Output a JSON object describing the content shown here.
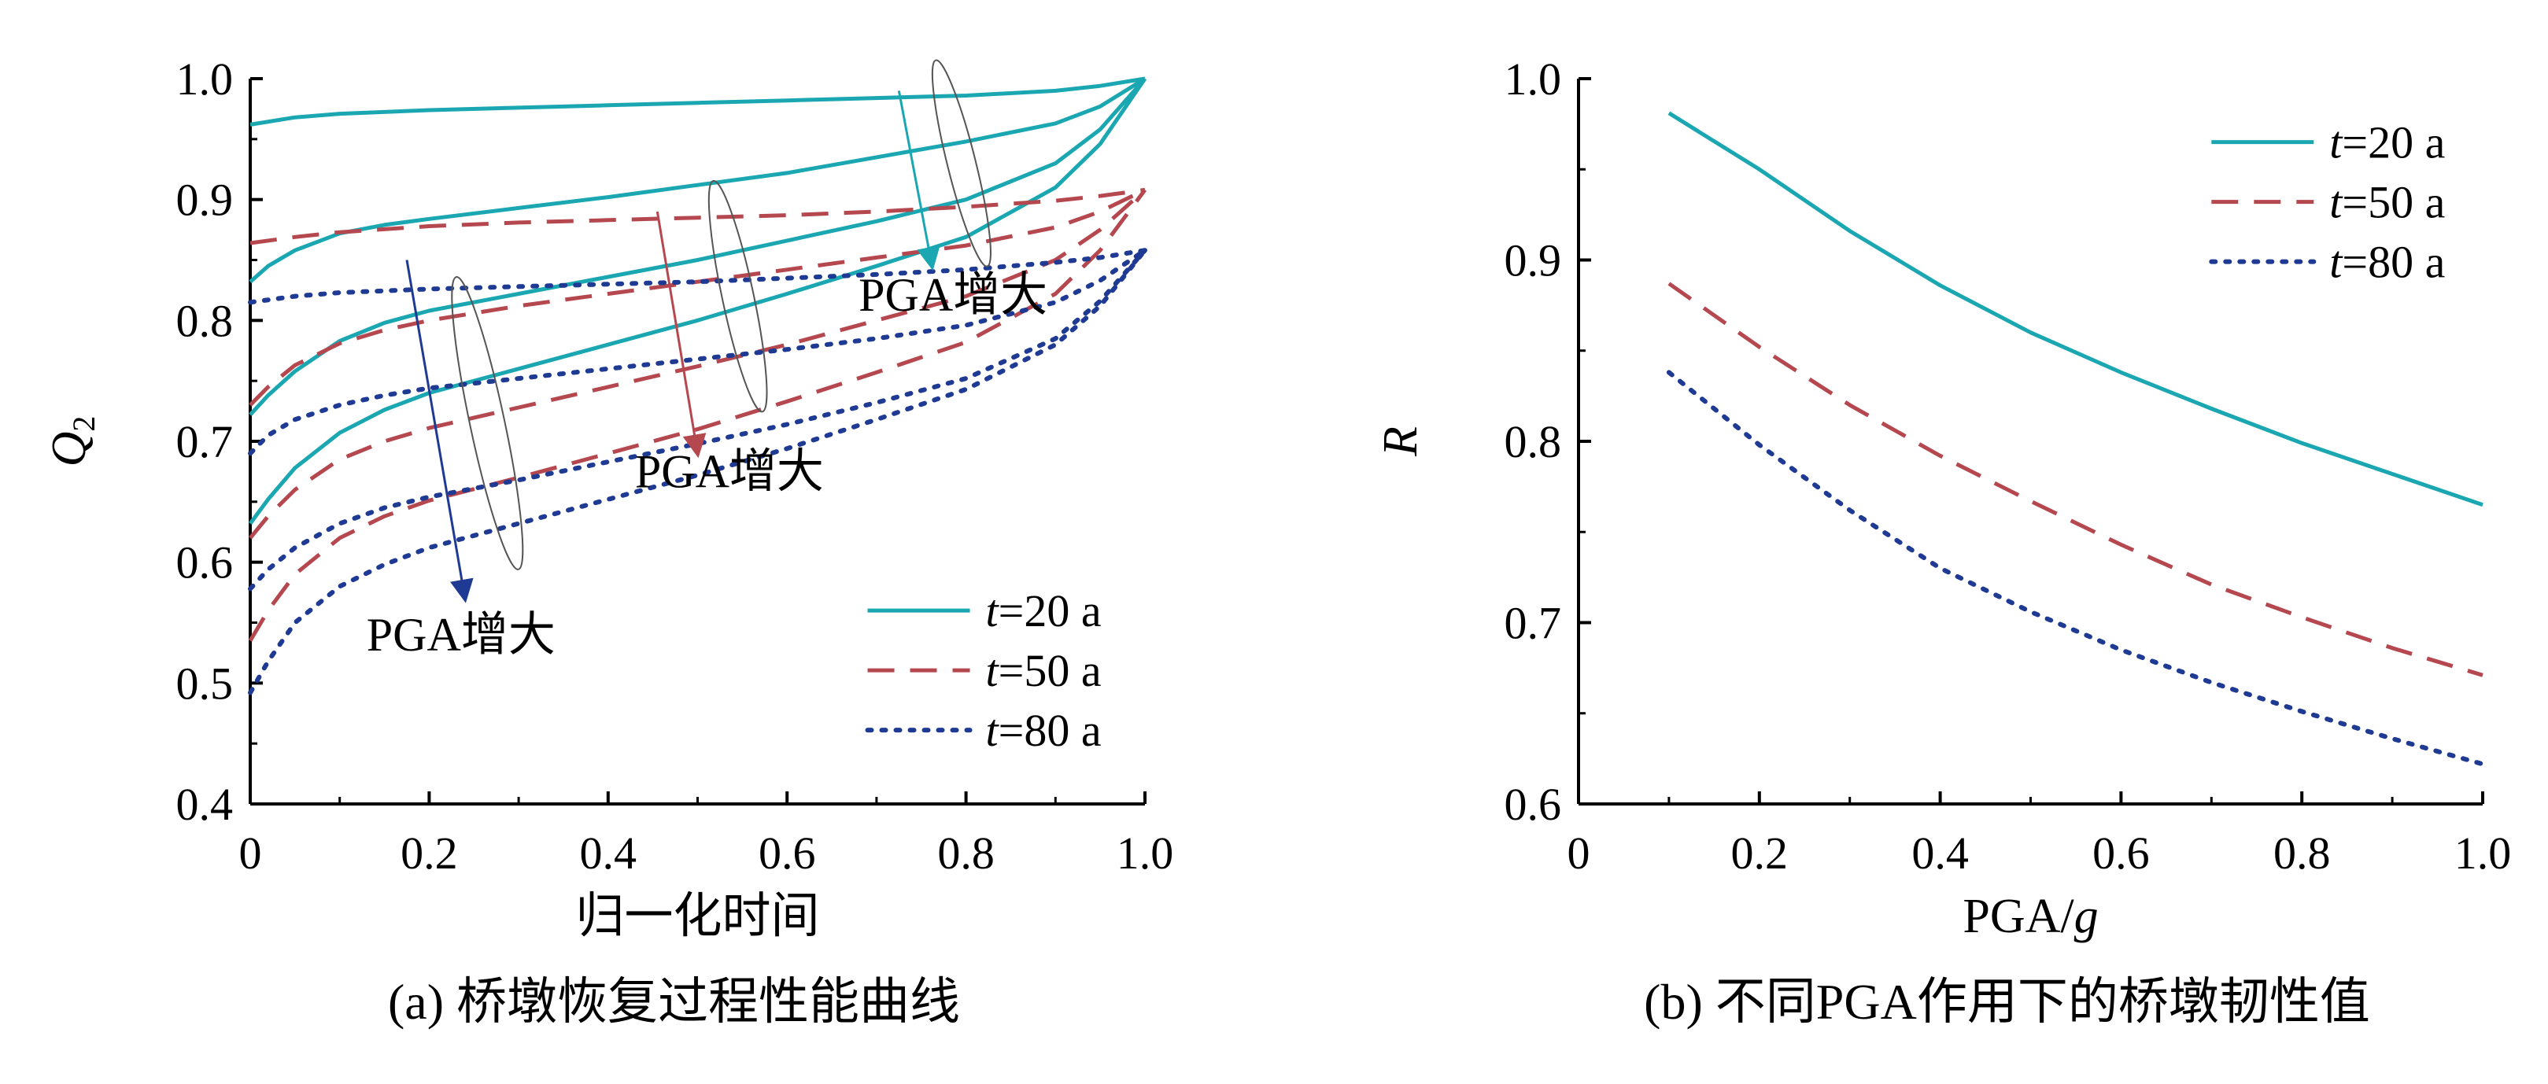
{
  "chart_data": [
    {
      "type": "line",
      "caption": "(a) 桥墩恢复过程性能曲线",
      "xlabel": "归一化时间",
      "ylabel": "Q",
      "ylabel_sub": "2",
      "xlim": [
        0,
        1.0
      ],
      "ylim": [
        0.4,
        1.0
      ],
      "xticks": [
        0,
        0.2,
        0.4,
        0.6,
        0.8,
        1.0
      ],
      "xtick_labels": [
        "0",
        "0.2",
        "0.4",
        "0.6",
        "0.8",
        "1.0"
      ],
      "yticks": [
        0.4,
        0.5,
        0.6,
        0.7,
        0.8,
        0.9,
        1.0
      ],
      "ytick_labels": [
        "0.4",
        "0.5",
        "0.6",
        "0.7",
        "0.8",
        "0.9",
        "1.0"
      ],
      "grid": false,
      "legend": {
        "position": "bottom-right",
        "entries": [
          {
            "italic": "t",
            "text": "=20 a",
            "style": "solid",
            "color": "#1AA7B2"
          },
          {
            "italic": "t",
            "text": "=50 a",
            "style": "dashed",
            "color": "#B5474F"
          },
          {
            "italic": "t",
            "text": "=80 a",
            "style": "dotted",
            "color": "#1F3A93"
          }
        ]
      },
      "annotations": [
        {
          "text": "PGA增大",
          "x": 0.13,
          "y": 0.527
        },
        {
          "text": "PGA增大",
          "x": 0.43,
          "y": 0.662
        },
        {
          "text": "PGA增大",
          "x": 0.68,
          "y": 0.808
        }
      ],
      "series": [
        {
          "group": "t=20 a",
          "style": "solid",
          "color": "#1AA7B2",
          "x": [
            0,
            0.05,
            0.1,
            0.2,
            0.3,
            0.4,
            0.5,
            0.6,
            0.7,
            0.8,
            0.9,
            0.95,
            1.0
          ],
          "y": [
            0.962,
            0.968,
            0.971,
            0.974,
            0.976,
            0.978,
            0.98,
            0.982,
            0.984,
            0.986,
            0.99,
            0.994,
            1.0
          ]
        },
        {
          "group": "t=20 a",
          "style": "solid",
          "color": "#1AA7B2",
          "x": [
            0,
            0.02,
            0.05,
            0.1,
            0.15,
            0.2,
            0.3,
            0.4,
            0.5,
            0.6,
            0.7,
            0.8,
            0.9,
            0.95,
            1.0
          ],
          "y": [
            0.832,
            0.845,
            0.858,
            0.872,
            0.879,
            0.884,
            0.893,
            0.902,
            0.912,
            0.922,
            0.935,
            0.948,
            0.963,
            0.977,
            1.0
          ]
        },
        {
          "group": "t=20 a",
          "style": "solid",
          "color": "#1AA7B2",
          "x": [
            0,
            0.02,
            0.05,
            0.1,
            0.15,
            0.2,
            0.3,
            0.4,
            0.5,
            0.6,
            0.7,
            0.8,
            0.9,
            0.95,
            1.0
          ],
          "y": [
            0.722,
            0.738,
            0.758,
            0.783,
            0.798,
            0.808,
            0.822,
            0.836,
            0.85,
            0.866,
            0.882,
            0.9,
            0.93,
            0.958,
            1.0
          ]
        },
        {
          "group": "t=20 a",
          "style": "solid",
          "color": "#1AA7B2",
          "x": [
            0,
            0.02,
            0.05,
            0.1,
            0.15,
            0.2,
            0.3,
            0.4,
            0.5,
            0.6,
            0.7,
            0.8,
            0.9,
            0.95,
            1.0
          ],
          "y": [
            0.632,
            0.652,
            0.678,
            0.707,
            0.726,
            0.74,
            0.76,
            0.78,
            0.8,
            0.822,
            0.845,
            0.869,
            0.91,
            0.946,
            1.0
          ]
        },
        {
          "group": "t=50 a",
          "style": "dashed",
          "color": "#B5474F",
          "x": [
            0,
            0.05,
            0.1,
            0.2,
            0.3,
            0.4,
            0.5,
            0.6,
            0.7,
            0.8,
            0.9,
            0.95,
            1.0
          ],
          "y": [
            0.864,
            0.869,
            0.873,
            0.878,
            0.881,
            0.883,
            0.885,
            0.887,
            0.89,
            0.894,
            0.899,
            0.903,
            0.908
          ]
        },
        {
          "group": "t=50 a",
          "style": "dashed",
          "color": "#B5474F",
          "x": [
            0,
            0.02,
            0.05,
            0.1,
            0.15,
            0.2,
            0.3,
            0.4,
            0.5,
            0.6,
            0.7,
            0.8,
            0.9,
            0.95,
            1.0
          ],
          "y": [
            0.73,
            0.745,
            0.763,
            0.781,
            0.792,
            0.8,
            0.812,
            0.822,
            0.832,
            0.842,
            0.852,
            0.862,
            0.877,
            0.89,
            0.908
          ]
        },
        {
          "group": "t=50 a",
          "style": "dashed",
          "color": "#B5474F",
          "x": [
            0,
            0.02,
            0.05,
            0.1,
            0.15,
            0.2,
            0.3,
            0.4,
            0.5,
            0.6,
            0.7,
            0.8,
            0.9,
            0.95,
            1.0
          ],
          "y": [
            0.62,
            0.638,
            0.66,
            0.685,
            0.7,
            0.711,
            0.728,
            0.745,
            0.762,
            0.78,
            0.8,
            0.82,
            0.85,
            0.875,
            0.908
          ]
        },
        {
          "group": "t=50 a",
          "style": "dashed",
          "color": "#B5474F",
          "x": [
            0,
            0.02,
            0.05,
            0.1,
            0.15,
            0.2,
            0.3,
            0.4,
            0.5,
            0.6,
            0.7,
            0.8,
            0.9,
            0.95,
            1.0
          ],
          "y": [
            0.535,
            0.56,
            0.59,
            0.62,
            0.638,
            0.651,
            0.67,
            0.69,
            0.71,
            0.733,
            0.757,
            0.782,
            0.822,
            0.858,
            0.908
          ]
        },
        {
          "group": "t=80 a",
          "style": "dotted",
          "color": "#1F3A93",
          "x": [
            0,
            0.05,
            0.1,
            0.2,
            0.3,
            0.4,
            0.5,
            0.6,
            0.7,
            0.8,
            0.9,
            0.95,
            1.0
          ],
          "y": [
            0.815,
            0.82,
            0.823,
            0.826,
            0.828,
            0.83,
            0.832,
            0.835,
            0.838,
            0.842,
            0.848,
            0.852,
            0.858
          ]
        },
        {
          "group": "t=80 a",
          "style": "dotted",
          "color": "#1F3A93",
          "x": [
            0,
            0.02,
            0.05,
            0.1,
            0.15,
            0.2,
            0.3,
            0.4,
            0.5,
            0.6,
            0.7,
            0.8,
            0.9,
            0.95,
            1.0
          ],
          "y": [
            0.69,
            0.705,
            0.718,
            0.73,
            0.738,
            0.744,
            0.752,
            0.76,
            0.768,
            0.776,
            0.785,
            0.796,
            0.815,
            0.833,
            0.858
          ]
        },
        {
          "group": "t=80 a",
          "style": "dotted",
          "color": "#1F3A93",
          "x": [
            0,
            0.02,
            0.05,
            0.1,
            0.15,
            0.2,
            0.3,
            0.4,
            0.5,
            0.6,
            0.7,
            0.8,
            0.9,
            0.95,
            1.0
          ],
          "y": [
            0.578,
            0.594,
            0.612,
            0.632,
            0.645,
            0.654,
            0.668,
            0.683,
            0.698,
            0.714,
            0.732,
            0.752,
            0.785,
            0.816,
            0.858
          ]
        },
        {
          "group": "t=80 a",
          "style": "dotted",
          "color": "#1F3A93",
          "x": [
            0,
            0.02,
            0.05,
            0.1,
            0.15,
            0.2,
            0.3,
            0.4,
            0.5,
            0.6,
            0.7,
            0.8,
            0.9,
            0.95,
            1.0
          ],
          "y": [
            0.492,
            0.518,
            0.55,
            0.58,
            0.598,
            0.612,
            0.632,
            0.652,
            0.672,
            0.694,
            0.718,
            0.743,
            0.78,
            0.812,
            0.858
          ]
        }
      ]
    },
    {
      "type": "line",
      "caption": "(b) 不同PGA作用下的桥墩韧性值",
      "xlabel": "PGA/",
      "xlabel_italic": "g",
      "ylabel": "R",
      "xlim": [
        0,
        1.0
      ],
      "ylim": [
        0.6,
        1.0
      ],
      "xticks": [
        0,
        0.2,
        0.4,
        0.6,
        0.8,
        1.0
      ],
      "xtick_labels": [
        "0",
        "0.2",
        "0.4",
        "0.6",
        "0.8",
        "1.0"
      ],
      "yticks": [
        0.6,
        0.7,
        0.8,
        0.9,
        1.0
      ],
      "ytick_labels": [
        "0.6",
        "0.7",
        "0.8",
        "0.9",
        "1.0"
      ],
      "grid": false,
      "legend": {
        "position": "top-right",
        "entries": [
          {
            "italic": "t",
            "text": "=20 a",
            "style": "solid",
            "color": "#1AA7B2"
          },
          {
            "italic": "t",
            "text": "=50 a",
            "style": "dashed",
            "color": "#B5474F"
          },
          {
            "italic": "t",
            "text": "=80 a",
            "style": "dotted",
            "color": "#1F3A93"
          }
        ]
      },
      "series": [
        {
          "name": "t=20 a",
          "style": "solid",
          "color": "#1AA7B2",
          "x": [
            0.1,
            0.2,
            0.3,
            0.4,
            0.5,
            0.6,
            0.7,
            0.8,
            0.9,
            1.0
          ],
          "y": [
            0.981,
            0.95,
            0.916,
            0.886,
            0.86,
            0.838,
            0.818,
            0.799,
            0.782,
            0.765
          ]
        },
        {
          "name": "t=50 a",
          "style": "dashed",
          "color": "#B5474F",
          "x": [
            0.1,
            0.2,
            0.3,
            0.4,
            0.5,
            0.6,
            0.7,
            0.8,
            0.9,
            1.0
          ],
          "y": [
            0.887,
            0.852,
            0.82,
            0.792,
            0.767,
            0.743,
            0.721,
            0.703,
            0.686,
            0.671
          ]
        },
        {
          "name": "t=80 a",
          "style": "dotted",
          "color": "#1F3A93",
          "x": [
            0.1,
            0.2,
            0.3,
            0.4,
            0.5,
            0.6,
            0.7,
            0.8,
            0.9,
            1.0
          ],
          "y": [
            0.838,
            0.798,
            0.762,
            0.73,
            0.706,
            0.685,
            0.667,
            0.651,
            0.636,
            0.622
          ]
        }
      ]
    }
  ]
}
